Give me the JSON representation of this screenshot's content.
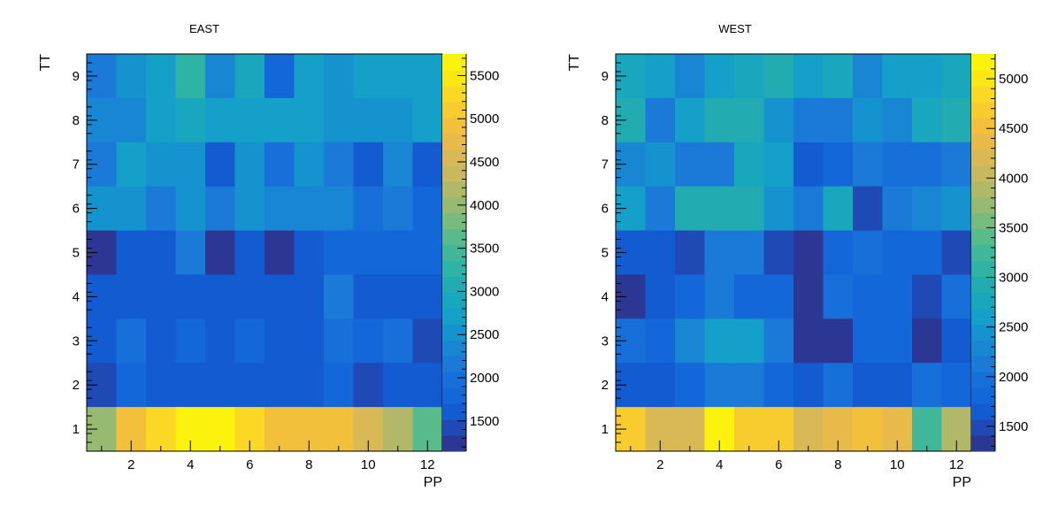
{
  "palette": [
    "#2b3793",
    "#1f4ab5",
    "#125bd0",
    "#1467d8",
    "#176fd9",
    "#1b79d7",
    "#1986d3",
    "#1593ce",
    "#14a0c8",
    "#18a7bd",
    "#22acb1",
    "#2fb3a5",
    "#3fb798",
    "#57bb8b",
    "#78bb7e",
    "#97ba72",
    "#b1b968",
    "#c8b95e",
    "#d9b955",
    "#e8ba4a",
    "#f3c03c",
    "#f8cb2f",
    "#fbd823",
    "#fbe716",
    "#fbf20d"
  ],
  "chart_data": [
    {
      "type": "heatmap",
      "title": "EAST",
      "xlabel": "PP",
      "ylabel": "TT",
      "x_range": [
        0.5,
        12.5
      ],
      "y_range": [
        0.5,
        9.5
      ],
      "x_ticks": [
        2,
        4,
        6,
        8,
        10,
        12
      ],
      "y_ticks": [
        1,
        2,
        3,
        4,
        5,
        6,
        7,
        8,
        9
      ],
      "z_range": [
        1150,
        5750
      ],
      "z_ticks": [
        1500,
        2000,
        2500,
        3000,
        3500,
        4000,
        4500,
        5000,
        5500
      ],
      "rows_top_to_bottom": [
        [
          2200,
          2450,
          2650,
          3350,
          2350,
          2950,
          1850,
          2700,
          2550,
          2650,
          2650,
          2650
        ],
        [
          2300,
          2400,
          2800,
          2950,
          2700,
          2700,
          2700,
          2800,
          2500,
          2600,
          2450,
          2650
        ],
        [
          2100,
          2800,
          2600,
          2600,
          1700,
          2600,
          1900,
          2600,
          2200,
          1700,
          2300,
          1650
        ],
        [
          2450,
          2500,
          2100,
          2500,
          2100,
          2500,
          2400,
          2400,
          2400,
          1950,
          2100,
          1750
        ],
        [
          1300,
          1550,
          1550,
          2100,
          1300,
          1650,
          1300,
          1650,
          1800,
          1750,
          1850,
          1750
        ],
        [
          1650,
          1700,
          1700,
          1550,
          1550,
          1550,
          1550,
          1550,
          2200,
          1550,
          1700,
          1700
        ],
        [
          1700,
          2000,
          1550,
          1800,
          1550,
          1800,
          1600,
          1700,
          1900,
          1800,
          1900,
          1500
        ],
        [
          1350,
          1750,
          1550,
          1550,
          1550,
          1550,
          1550,
          1700,
          1800,
          1350,
          1700,
          1650
        ],
        [
          4050,
          4900,
          5350,
          5650,
          5650,
          5250,
          4900,
          4900,
          4900,
          4600,
          4200,
          3600
        ]
      ]
    },
    {
      "type": "heatmap",
      "title": "WEST",
      "xlabel": "PP",
      "ylabel": "TT",
      "x_range": [
        0.5,
        12.5
      ],
      "y_range": [
        0.5,
        9.5
      ],
      "x_ticks": [
        2,
        4,
        6,
        8,
        10,
        12
      ],
      "y_ticks": [
        1,
        2,
        3,
        4,
        5,
        6,
        7,
        8,
        9
      ],
      "z_range": [
        1250,
        5250
      ],
      "z_ticks": [
        1500,
        2000,
        2500,
        3000,
        3500,
        4000,
        4500,
        5000
      ],
      "rows_top_to_bottom": [
        [
          2800,
          2650,
          2300,
          2650,
          2750,
          2950,
          2550,
          2800,
          2300,
          2650,
          2650,
          2700
        ],
        [
          2850,
          2050,
          2650,
          2950,
          2950,
          2400,
          2100,
          2200,
          2450,
          2250,
          2700,
          2950
        ],
        [
          2250,
          2500,
          2100,
          2150,
          2800,
          2650,
          1700,
          1850,
          2050,
          1950,
          1950,
          2100
        ],
        [
          2550,
          2050,
          2900,
          2900,
          2900,
          2450,
          2100,
          2750,
          1550,
          2100,
          2250,
          2500
        ],
        [
          1700,
          1700,
          1550,
          2050,
          2200,
          1550,
          1350,
          1750,
          1950,
          1750,
          1750,
          1550
        ],
        [
          1350,
          1650,
          1800,
          2200,
          1800,
          1800,
          1350,
          2000,
          1800,
          1800,
          1550,
          1950
        ],
        [
          2000,
          1750,
          2300,
          2550,
          2550,
          2100,
          1350,
          1350,
          1800,
          1800,
          1350,
          1600
        ],
        [
          1700,
          1700,
          1850,
          2100,
          2200,
          1800,
          1700,
          1950,
          1600,
          1600,
          1950,
          1750
        ],
        [
          4700,
          4250,
          4250,
          5150,
          4700,
          4700,
          4250,
          4350,
          4550,
          4400,
          3250,
          3900
        ]
      ]
    }
  ]
}
